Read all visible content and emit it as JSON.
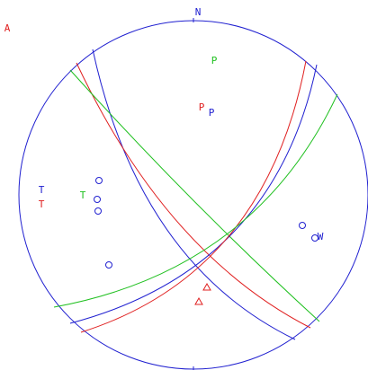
{
  "labels": {
    "corner": "A",
    "north": "N",
    "p_green": "P",
    "p_red": "P",
    "p_blue": "P",
    "t_blue": "T",
    "t_red": "T",
    "t_green": "T",
    "station": "W"
  }
}
